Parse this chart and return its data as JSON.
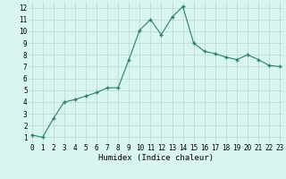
{
  "x": [
    0,
    1,
    2,
    3,
    4,
    5,
    6,
    7,
    8,
    9,
    10,
    11,
    12,
    13,
    14,
    15,
    16,
    17,
    18,
    19,
    20,
    21,
    22,
    23
  ],
  "y": [
    1.2,
    1.0,
    2.6,
    4.0,
    4.2,
    4.5,
    4.8,
    5.2,
    5.2,
    7.6,
    10.1,
    11.0,
    9.7,
    11.2,
    12.1,
    9.0,
    8.3,
    8.1,
    7.8,
    7.6,
    8.0,
    7.6,
    7.1,
    7.0
  ],
  "xlim": [
    -0.3,
    23.3
  ],
  "ylim": [
    0.5,
    12.5
  ],
  "yticks": [
    1,
    2,
    3,
    4,
    5,
    6,
    7,
    8,
    9,
    10,
    11,
    12
  ],
  "xticks": [
    0,
    1,
    2,
    3,
    4,
    5,
    6,
    7,
    8,
    9,
    10,
    11,
    12,
    13,
    14,
    15,
    16,
    17,
    18,
    19,
    20,
    21,
    22,
    23
  ],
  "xlabel": "Humidex (Indice chaleur)",
  "line_color": "#2e7d6e",
  "marker": "+",
  "bg_color": "#d8f5f0",
  "grid_color": "#b8d8d4",
  "xlabel_fontsize": 6.5,
  "tick_fontsize": 5.5
}
